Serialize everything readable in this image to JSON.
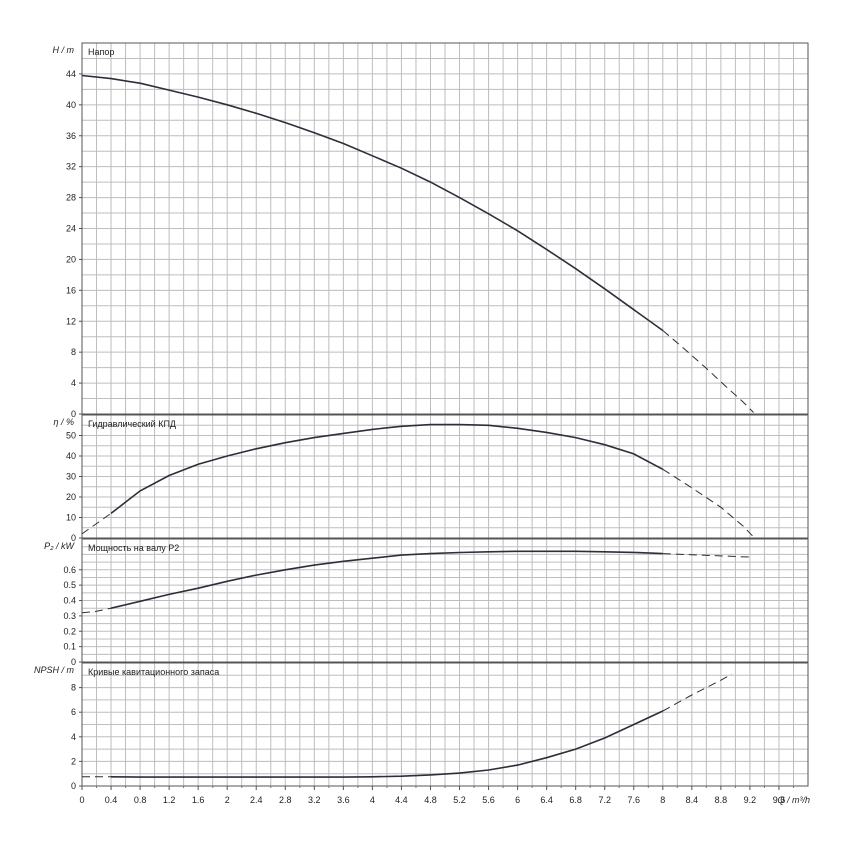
{
  "chart_data": {
    "type": "line",
    "x_axis": {
      "label": "Q / m³/h",
      "range": [
        0,
        10
      ],
      "tick_step": 0.4,
      "tick_labels": [
        "0",
        "0.4",
        "0.8",
        "1.2",
        "1.6",
        "2",
        "2.4",
        "2.8",
        "3.2",
        "3.6",
        "4",
        "4.4",
        "4.8",
        "5.2",
        "5.6",
        "6",
        "6.4",
        "6.8",
        "7.2",
        "7.6",
        "8",
        "8.4",
        "8.8",
        "9.2",
        "9.6"
      ]
    },
    "grid": true,
    "panels": [
      {
        "id": "head",
        "title": "Напор",
        "ylabel": "H / m",
        "ylim": [
          0,
          48
        ],
        "y_ticks": [
          0,
          4,
          8,
          12,
          16,
          20,
          24,
          28,
          32,
          36,
          40,
          44
        ],
        "series": [
          {
            "style": "solid",
            "x": [
              0,
              0.4,
              0.8,
              1.2,
              1.6,
              2,
              2.4,
              2.8,
              3.2,
              3.6,
              4,
              4.4,
              4.8,
              5.2,
              5.6,
              6,
              6.4,
              6.8,
              7.2,
              7.6,
              8
            ],
            "y": [
              43.8,
              43.4,
              42.8,
              41.9,
              41.0,
              40.0,
              38.9,
              37.7,
              36.4,
              35.0,
              33.4,
              31.8,
              30.0,
              28.0,
              25.9,
              23.7,
              21.3,
              18.8,
              16.2,
              13.5,
              10.8
            ]
          },
          {
            "style": "dashed",
            "x": [
              8,
              8.3,
              8.6,
              8.9,
              9.1,
              9.25
            ],
            "y": [
              10.8,
              8.4,
              5.9,
              3.3,
              1.6,
              0.2
            ]
          }
        ]
      },
      {
        "id": "efficiency",
        "title": "Гидравлический КПД",
        "ylabel": "η / %",
        "ylim": [
          0,
          60
        ],
        "y_ticks": [
          0,
          10,
          20,
          30,
          40,
          50
        ],
        "series": [
          {
            "style": "dashed",
            "x": [
              0,
              0.2,
              0.4
            ],
            "y": [
              2,
              7,
              12
            ]
          },
          {
            "style": "solid",
            "x": [
              0.4,
              0.8,
              1.2,
              1.6,
              2,
              2.4,
              2.8,
              3.2,
              3.6,
              4,
              4.4,
              4.8,
              5.2,
              5.6,
              6,
              6.4,
              6.8,
              7.2,
              7.6,
              8
            ],
            "y": [
              12,
              23,
              30.5,
              36,
              40,
              43.5,
              46.5,
              49,
              51,
              53,
              54.5,
              55.3,
              55.3,
              55,
              53.5,
              51.5,
              49,
              45.5,
              41,
              33.5
            ]
          },
          {
            "style": "dashed",
            "x": [
              8,
              8.4,
              8.8,
              9.1,
              9.25
            ],
            "y": [
              33.5,
              24.5,
              15,
              6,
              0.5
            ]
          }
        ]
      },
      {
        "id": "power",
        "title": "Мощность на валу P2",
        "ylabel": "P₂ / kW",
        "ylim": [
          0,
          0.8
        ],
        "y_ticks": [
          0,
          0.1,
          0.2,
          0.3,
          0.4,
          0.5,
          0.6
        ],
        "y_tick_labels": [
          "0",
          "0.1",
          "0.2",
          "0.3",
          "0.4",
          "0.5",
          "0.6"
        ],
        "series": [
          {
            "style": "dashed",
            "x": [
              0,
              0.2,
              0.4
            ],
            "y": [
              0.32,
              0.33,
              0.35
            ]
          },
          {
            "style": "solid",
            "x": [
              0.4,
              0.8,
              1.2,
              1.6,
              2,
              2.4,
              2.8,
              3.2,
              3.6,
              4,
              4.4,
              4.8,
              5.2,
              5.6,
              6,
              6.4,
              6.8,
              7.2,
              7.6,
              8
            ],
            "y": [
              0.35,
              0.395,
              0.44,
              0.48,
              0.525,
              0.565,
              0.6,
              0.63,
              0.655,
              0.675,
              0.695,
              0.705,
              0.712,
              0.717,
              0.72,
              0.72,
              0.72,
              0.717,
              0.713,
              0.705
            ]
          },
          {
            "style": "dashed",
            "x": [
              8,
              8.4,
              8.8,
              9.2,
              9.25
            ],
            "y": [
              0.705,
              0.697,
              0.69,
              0.682,
              0.68
            ]
          }
        ]
      },
      {
        "id": "npsh",
        "title": "Кривые кавитационного запаса",
        "ylabel": "NPSH / m",
        "ylim": [
          0,
          10
        ],
        "y_ticks": [
          0,
          2,
          4,
          6,
          8
        ],
        "series": [
          {
            "style": "dashed",
            "x": [
              0,
              0.2,
              0.4
            ],
            "y": [
              0.75,
              0.75,
              0.75
            ]
          },
          {
            "style": "solid",
            "x": [
              0.4,
              0.8,
              1.2,
              1.6,
              2,
              2.4,
              2.8,
              3.2,
              3.6,
              4,
              4.4,
              4.8,
              5.2,
              5.6,
              6,
              6.4,
              6.8,
              7.2,
              7.6,
              8
            ],
            "y": [
              0.75,
              0.72,
              0.72,
              0.72,
              0.72,
              0.72,
              0.72,
              0.72,
              0.72,
              0.75,
              0.8,
              0.9,
              1.05,
              1.3,
              1.7,
              2.3,
              3.0,
              3.9,
              5.0,
              6.1
            ]
          },
          {
            "style": "dashed",
            "x": [
              8,
              8.4,
              8.8,
              8.95
            ],
            "y": [
              6.1,
              7.4,
              8.6,
              9.1
            ]
          }
        ]
      }
    ]
  }
}
